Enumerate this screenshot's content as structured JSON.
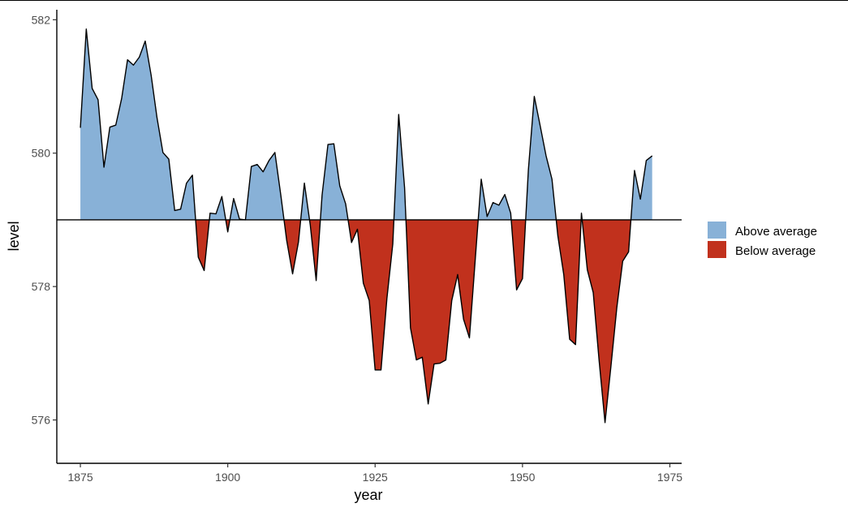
{
  "chart_data": {
    "type": "area",
    "title": "",
    "xlabel": "year",
    "ylabel": "level",
    "xlim": [
      1871,
      1977
    ],
    "ylim": [
      575.35,
      582.15
    ],
    "xticks": [
      1875,
      1900,
      1925,
      1950,
      1975
    ],
    "yticks": [
      576,
      578,
      580,
      582
    ],
    "baseline": 579.0,
    "grid": false,
    "legend_position": "right",
    "legend": [
      {
        "label": "Above average",
        "color": "#88b1d7"
      },
      {
        "label": "Below average",
        "color": "#c1311d"
      }
    ],
    "colors": {
      "above": "#88b1d7",
      "below": "#c1311d",
      "line": "#000000"
    },
    "x": [
      1875,
      1876,
      1877,
      1878,
      1879,
      1880,
      1881,
      1882,
      1883,
      1884,
      1885,
      1886,
      1887,
      1888,
      1889,
      1890,
      1891,
      1892,
      1893,
      1894,
      1895,
      1896,
      1897,
      1898,
      1899,
      1900,
      1901,
      1902,
      1903,
      1904,
      1905,
      1906,
      1907,
      1908,
      1909,
      1910,
      1911,
      1912,
      1913,
      1914,
      1915,
      1916,
      1917,
      1918,
      1919,
      1920,
      1921,
      1922,
      1923,
      1924,
      1925,
      1926,
      1927,
      1928,
      1929,
      1930,
      1931,
      1932,
      1933,
      1934,
      1935,
      1936,
      1937,
      1938,
      1939,
      1940,
      1941,
      1942,
      1943,
      1944,
      1945,
      1946,
      1947,
      1948,
      1949,
      1950,
      1951,
      1952,
      1953,
      1954,
      1955,
      1956,
      1957,
      1958,
      1959,
      1960,
      1961,
      1962,
      1963,
      1964,
      1965,
      1966,
      1967,
      1968,
      1969,
      1970,
      1971,
      1972
    ],
    "y": [
      580.38,
      581.86,
      580.97,
      580.8,
      579.79,
      580.39,
      580.42,
      580.82,
      581.4,
      581.32,
      581.44,
      581.68,
      581.17,
      580.53,
      580.01,
      579.91,
      579.14,
      579.16,
      579.55,
      579.67,
      578.44,
      578.24,
      579.1,
      579.09,
      579.35,
      578.82,
      579.32,
      579.01,
      579.0,
      579.8,
      579.83,
      579.72,
      579.89,
      580.01,
      579.37,
      578.69,
      578.19,
      578.67,
      579.55,
      578.92,
      578.09,
      579.37,
      580.13,
      580.14,
      579.51,
      579.24,
      578.66,
      578.86,
      578.05,
      577.79,
      576.75,
      576.75,
      577.82,
      578.64,
      580.58,
      579.48,
      577.38,
      576.9,
      576.94,
      576.24,
      576.84,
      576.85,
      576.9,
      577.79,
      578.18,
      577.51,
      577.23,
      578.42,
      579.61,
      579.05,
      579.26,
      579.22,
      579.38,
      579.1,
      577.95,
      578.12,
      579.75,
      580.85,
      580.41,
      579.96,
      579.61,
      578.76,
      578.18,
      577.21,
      577.13,
      579.1,
      578.25,
      577.91,
      576.89,
      575.96,
      576.8,
      577.68,
      578.38,
      578.52,
      579.74,
      579.31,
      579.89,
      579.96
    ]
  }
}
